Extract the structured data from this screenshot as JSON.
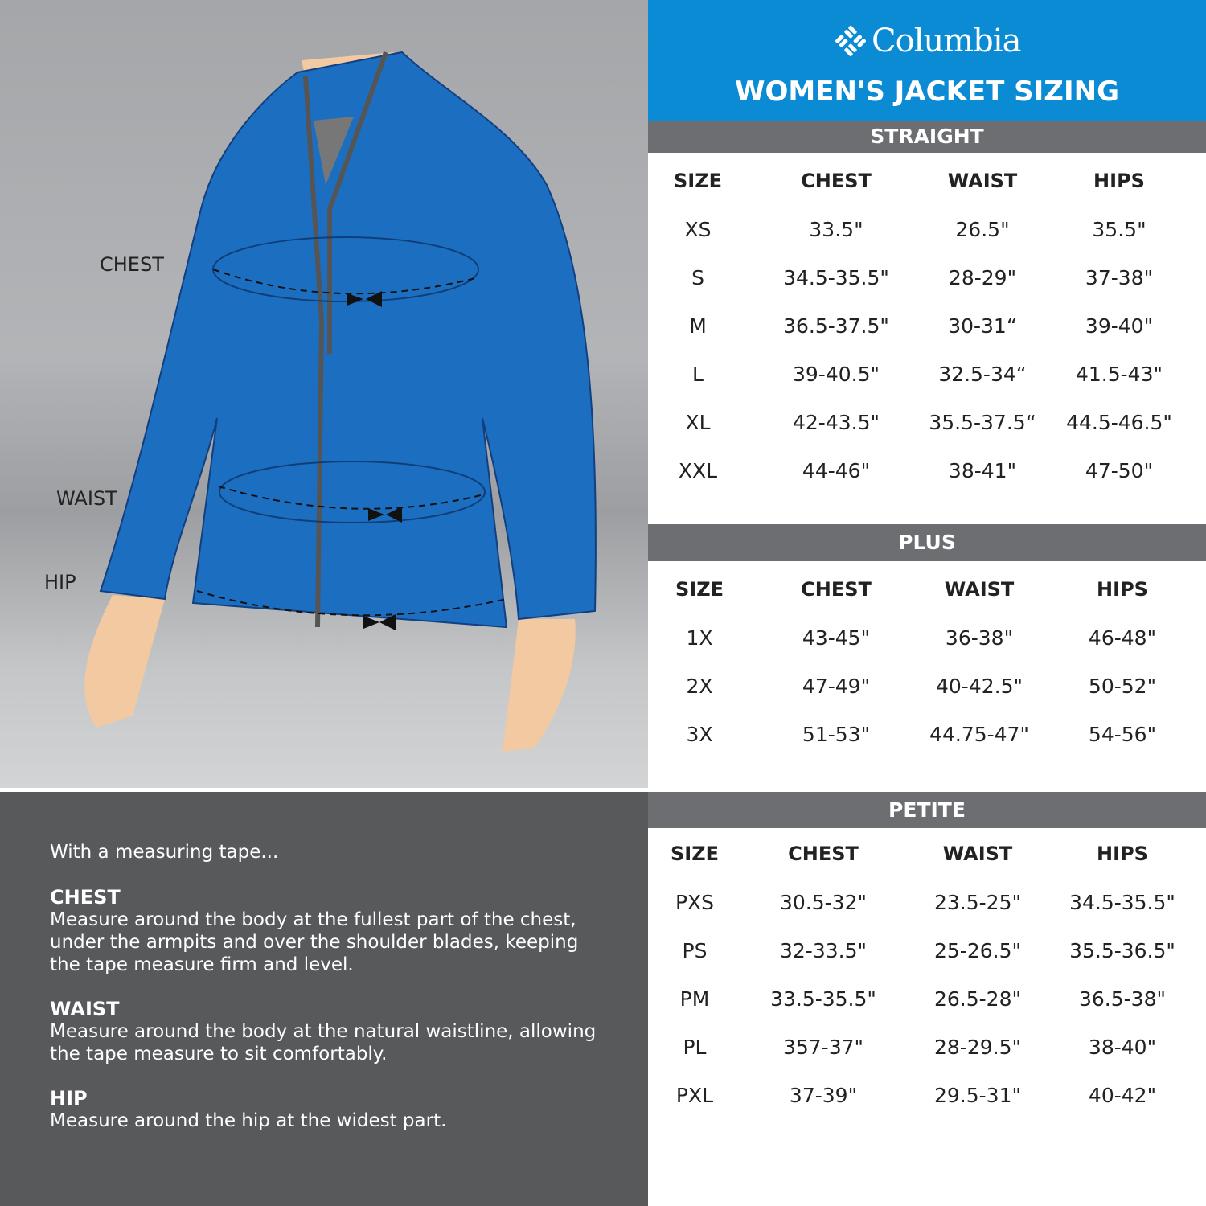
{
  "brand": "Columbia",
  "title": "WOMEN'S JACKET SIZING",
  "colors": {
    "header_blue": "#0a8bd3",
    "bar_gray": "#6d6e71",
    "jacket_blue": "#1c6fc0",
    "info_bg": "#58595b"
  },
  "illustration": {
    "labels": {
      "chest": "CHEST",
      "waist": "WAIST",
      "hip": "HIP"
    }
  },
  "instructions": {
    "intro": "With a measuring tape...",
    "items": [
      {
        "heading": "CHEST",
        "text": "Measure around the body at the fullest part of the chest, under the armpits and over the shoulder blades, keeping the tape measure firm and level."
      },
      {
        "heading": "WAIST",
        "text": "Measure around the body at the natural waistline, allowing the tape measure to sit comfortably."
      },
      {
        "heading": "HIP",
        "text": "Measure around the hip at the widest part."
      }
    ]
  },
  "tables": [
    {
      "name": "STRAIGHT",
      "columns": [
        "SIZE",
        "CHEST",
        "WAIST",
        "HIPS"
      ],
      "rows": [
        [
          "XS",
          "33.5\"",
          "26.5\"",
          "35.5\""
        ],
        [
          "S",
          "34.5-35.5\"",
          "28-29\"",
          "37-38\""
        ],
        [
          "M",
          "36.5-37.5\"",
          "30-31“",
          "39-40\""
        ],
        [
          "L",
          "39-40.5\"",
          "32.5-34“",
          "41.5-43\""
        ],
        [
          "XL",
          "42-43.5\"",
          "35.5-37.5“",
          "44.5-46.5\""
        ],
        [
          "XXL",
          "44-46\"",
          "38-41\"",
          "47-50\""
        ]
      ]
    },
    {
      "name": "PLUS",
      "columns": [
        "SIZE",
        "CHEST",
        "WAIST",
        "HIPS"
      ],
      "rows": [
        [
          "1X",
          "43-45\"",
          "36-38\"",
          "46-48\""
        ],
        [
          "2X",
          "47-49\"",
          "40-42.5\"",
          "50-52\""
        ],
        [
          "3X",
          "51-53\"",
          "44.75-47\"",
          "54-56\""
        ]
      ]
    },
    {
      "name": "PETITE",
      "columns": [
        "SIZE",
        "CHEST",
        "WAIST",
        "HIPS"
      ],
      "rows": [
        [
          "PXS",
          "30.5-32\"",
          "23.5-25\"",
          "34.5-35.5\""
        ],
        [
          "PS",
          "32-33.5\"",
          "25-26.5\"",
          "35.5-36.5\""
        ],
        [
          "PM",
          "33.5-35.5\"",
          "26.5-28\"",
          "36.5-38\""
        ],
        [
          "PL",
          "357-37\"",
          "28-29.5\"",
          "38-40\""
        ],
        [
          "PXL",
          "37-39\"",
          "29.5-31\"",
          "40-42\""
        ]
      ]
    }
  ]
}
